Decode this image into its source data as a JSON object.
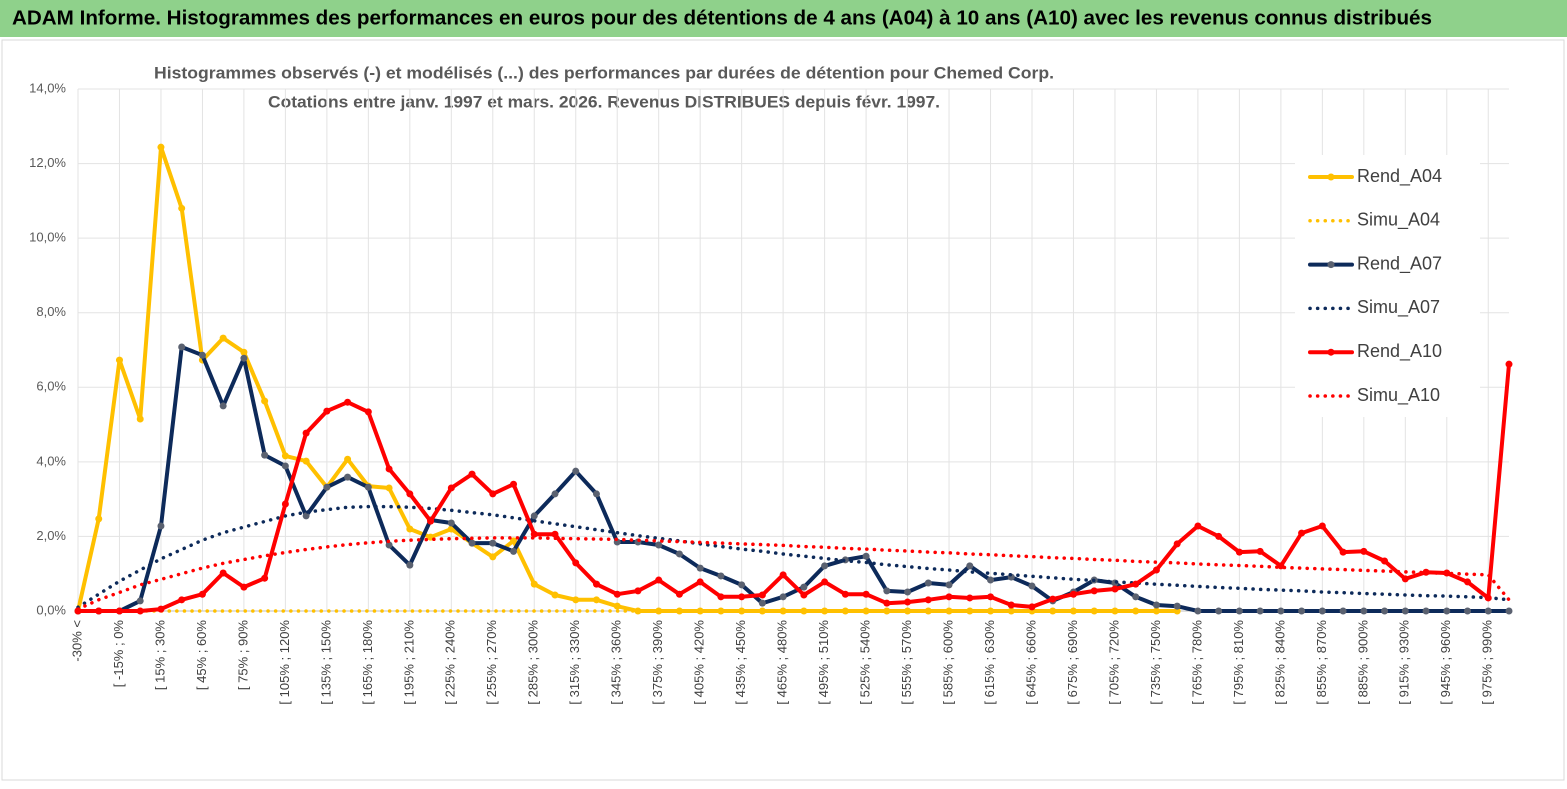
{
  "chart_data": {
    "type": "line",
    "title": "ADAM Informe. Histogrammes des performances en euros pour des détentions de 4 ans (A04) à 10 ans (A10) avec les revenus connus distribués",
    "subtitle": [
      "Histogrammes observés (-) et modélisés (...) des performances par durées de détention pour Chemed Corp.",
      "Cotations entre janv. 1997 et mars. 2026. Revenus DISTRIBUES depuis févr. 1997."
    ],
    "categories": [
      "-30% <",
      null,
      "[ -15% ; 0%",
      null,
      "[ 15% ; 30%",
      null,
      "[ 45% ; 60%",
      null,
      "[ 75% ; 90%",
      null,
      "[ 105% ; 120%",
      null,
      "[ 135% ; 150%",
      null,
      "[ 165% ; 180%",
      null,
      "[ 195% ; 210%",
      null,
      "[ 225% ; 240%",
      null,
      "[ 255% ; 270%",
      null,
      "[ 285% ; 300%",
      null,
      "[ 315% ; 330%",
      null,
      "[ 345% ; 360%",
      null,
      "[ 375% ; 390%",
      null,
      "[ 405% ; 420%",
      null,
      "[ 435% ; 450%",
      null,
      "[ 465% ; 480%",
      null,
      "[ 495% ; 510%",
      null,
      "[ 525% ; 540%",
      null,
      "[ 555% ; 570%",
      null,
      "[ 585% ; 600%",
      null,
      "[ 615% ; 630%",
      null,
      "[ 645% ; 660%",
      null,
      "[ 675% ; 690%",
      null,
      "[ 705% ; 720%",
      null,
      "[ 735% ; 750%",
      null,
      "[ 765% ; 780%",
      null,
      "[ 795% ; 810%",
      null,
      "[ 825% ; 840%",
      null,
      "[ 855% ; 870%",
      null,
      "[ 885% ; 900%",
      null,
      "[ 915% ; 930%",
      null,
      "[ 945% ; 960%",
      null,
      "[ 975% ; 990%",
      null
    ],
    "series": [
      {
        "name": "Rend_A04",
        "color": "#ffc000",
        "style": "solid",
        "marker": true,
        "marker_color": "#ffc000",
        "values": [
          0,
          2.47,
          6.73,
          5.15,
          12.44,
          10.8,
          6.73,
          7.32,
          6.94,
          5.63,
          4.16,
          4.02,
          3.32,
          4.07,
          3.35,
          3.3,
          2.2,
          1.98,
          2.2,
          1.82,
          1.45,
          1.88,
          0.72,
          0.43,
          0.3,
          0.3,
          0.13,
          0,
          0,
          0,
          0,
          0,
          0,
          0,
          0,
          0,
          0,
          0,
          0,
          0,
          0,
          0,
          0,
          0,
          0,
          0,
          0,
          0,
          0,
          0,
          0,
          0,
          0,
          0,
          null,
          null,
          null,
          null,
          null,
          null,
          null,
          null,
          null,
          null,
          null,
          null,
          null,
          null,
          null,
          null
        ]
      },
      {
        "name": "Simu_A04",
        "color": "#ffc000",
        "style": "dotted",
        "marker": false,
        "values": [
          0,
          0,
          0,
          0,
          0,
          0,
          0,
          0,
          0,
          0,
          0,
          0,
          0,
          0,
          0,
          0,
          0,
          0,
          0,
          0,
          0,
          0,
          0,
          0,
          0,
          0,
          0,
          0,
          0,
          0,
          0,
          0,
          0,
          0,
          0,
          0,
          0,
          0,
          0,
          0,
          0,
          0,
          0,
          0,
          0,
          0,
          0,
          0,
          0,
          0,
          0,
          0,
          0,
          0,
          null,
          null,
          null,
          null,
          null,
          null,
          null,
          null,
          null,
          null,
          null,
          null,
          null,
          null,
          null,
          null
        ]
      },
      {
        "name": "Rend_A07",
        "color": "#0d2a5a",
        "style": "solid",
        "marker": true,
        "marker_color": "#5a6170",
        "values": [
          0,
          0,
          0,
          0.27,
          2.28,
          7.08,
          6.86,
          5.5,
          6.78,
          4.18,
          3.89,
          2.55,
          3.32,
          3.59,
          3.32,
          1.77,
          1.23,
          2.44,
          2.36,
          1.82,
          1.82,
          1.6,
          2.55,
          3.14,
          3.75,
          3.14,
          1.85,
          1.85,
          1.77,
          1.53,
          1.15,
          0.94,
          0.7,
          0.21,
          0.38,
          0.64,
          1.21,
          1.37,
          1.47,
          0.54,
          0.51,
          0.75,
          0.7,
          1.21,
          0.83,
          0.91,
          0.67,
          0.27,
          0.51,
          0.83,
          0.75,
          0.38,
          0.16,
          0.13,
          0,
          0,
          0,
          0,
          0,
          0,
          0,
          0,
          0,
          0,
          0,
          0,
          0,
          0,
          0,
          0
        ]
      },
      {
        "name": "Simu_A07",
        "color": "#0d2a5a",
        "style": "dotted",
        "marker": false,
        "values": [
          0.1,
          0.45,
          0.8,
          1.1,
          1.4,
          1.65,
          1.9,
          2.1,
          2.25,
          2.4,
          2.55,
          2.65,
          2.72,
          2.78,
          2.8,
          2.8,
          2.78,
          2.75,
          2.7,
          2.64,
          2.58,
          2.5,
          2.42,
          2.34,
          2.26,
          2.18,
          2.1,
          2.02,
          1.95,
          1.88,
          1.8,
          1.73,
          1.66,
          1.6,
          1.53,
          1.47,
          1.41,
          1.35,
          1.3,
          1.24,
          1.19,
          1.14,
          1.1,
          1.05,
          1.01,
          0.97,
          0.93,
          0.89,
          0.85,
          0.82,
          0.78,
          0.75,
          0.72,
          0.69,
          0.66,
          0.63,
          0.61,
          0.58,
          0.56,
          0.54,
          0.51,
          0.49,
          0.47,
          0.45,
          0.43,
          0.41,
          0.4,
          0.38,
          0.36,
          0.3
        ]
      },
      {
        "name": "Rend_A10",
        "color": "#ff0000",
        "style": "solid",
        "marker": true,
        "marker_color": "#ff0000",
        "values": [
          0,
          0,
          0,
          0,
          0.05,
          0.3,
          0.45,
          1.02,
          0.64,
          0.88,
          2.87,
          4.77,
          5.36,
          5.6,
          5.34,
          3.81,
          3.14,
          2.41,
          3.3,
          3.67,
          3.14,
          3.4,
          2.06,
          2.06,
          1.29,
          0.72,
          0.45,
          0.54,
          0.83,
          0.45,
          0.78,
          0.38,
          0.38,
          0.43,
          0.97,
          0.43,
          0.78,
          0.45,
          0.45,
          0.21,
          0.24,
          0.3,
          0.38,
          0.35,
          0.38,
          0.16,
          0.11,
          0.32,
          0.45,
          0.54,
          0.59,
          0.72,
          1.1,
          1.8,
          2.28,
          2.0,
          1.58,
          1.6,
          1.21,
          2.09,
          2.28,
          1.58,
          1.6,
          1.34,
          0.86,
          1.04,
          1.02,
          0.78,
          0.35,
          6.62
        ]
      },
      {
        "name": "Simu_A10",
        "color": "#ff0000",
        "style": "dotted",
        "marker": false,
        "values": [
          0.05,
          0.3,
          0.5,
          0.7,
          0.85,
          1.0,
          1.15,
          1.28,
          1.38,
          1.48,
          1.57,
          1.65,
          1.72,
          1.78,
          1.83,
          1.87,
          1.9,
          1.92,
          1.94,
          1.95,
          1.96,
          1.96,
          1.96,
          1.95,
          1.94,
          1.93,
          1.92,
          1.9,
          1.88,
          1.86,
          1.84,
          1.82,
          1.8,
          1.78,
          1.76,
          1.73,
          1.71,
          1.68,
          1.66,
          1.63,
          1.61,
          1.58,
          1.56,
          1.53,
          1.51,
          1.48,
          1.46,
          1.43,
          1.41,
          1.38,
          1.36,
          1.33,
          1.31,
          1.29,
          1.26,
          1.24,
          1.22,
          1.2,
          1.17,
          1.15,
          1.13,
          1.11,
          1.09,
          1.07,
          1.05,
          1.03,
          1.01,
          0.99,
          0.97,
          0.3
        ]
      }
    ],
    "ylim": [
      0,
      14
    ],
    "yticks": [
      {
        "value": 0,
        "label": "0,0%"
      },
      {
        "value": 2,
        "label": "2,0%"
      },
      {
        "value": 4,
        "label": "4,0%"
      },
      {
        "value": 6,
        "label": "6,0%"
      },
      {
        "value": 8,
        "label": "8,0%"
      },
      {
        "value": 10,
        "label": "10,0%"
      },
      {
        "value": 12,
        "label": "12,0%"
      },
      {
        "value": 14,
        "label": "14,0%"
      }
    ],
    "grid": true,
    "legend": "right"
  }
}
